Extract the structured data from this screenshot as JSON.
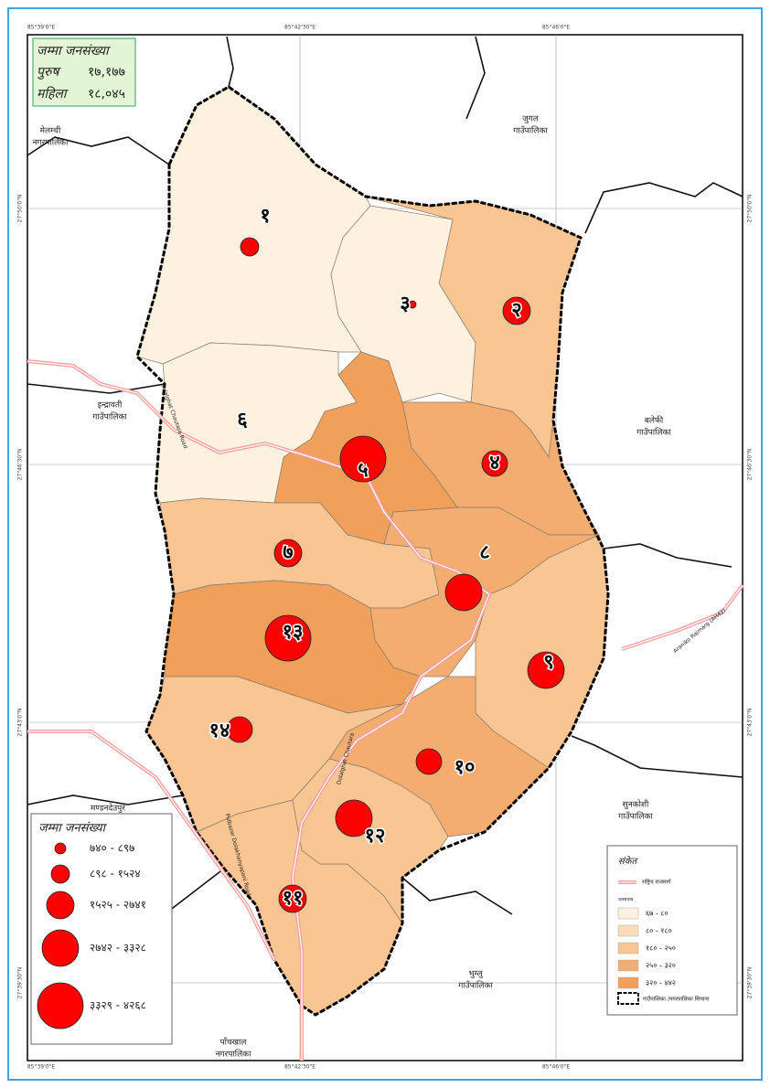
{
  "summary": {
    "title": "जम्मा जनसंख्या",
    "rows": [
      [
        "पुरुष",
        "१७,१७७"
      ],
      [
        "महिला",
        "१८,०४५"
      ]
    ]
  },
  "coordinates": {
    "top": [
      "85°39'0\"E",
      "85°42'30\"E",
      "85°46'0\"E"
    ],
    "bottom": [
      "85°39'0\"E",
      "85°42'30\"E",
      "85°46'0\"E"
    ],
    "left": [
      "27°50'0\"N",
      "27°46'30\"N",
      "27°43'0\"N",
      "27°39'30\"N"
    ],
    "right": [
      "27°50'0\"N",
      "27°46'30\"N",
      "27°43'0\"N",
      "27°39'30\"N"
    ]
  },
  "neighbors": [
    [
      "मेलम्ची",
      "नगरपालिका"
    ],
    [
      "जुगल",
      "गाउँपालिका"
    ],
    [
      "इन्द्रावती",
      "गाउँपालिका"
    ],
    [
      "बलेफी",
      "गाउँपालिका"
    ],
    [
      "सुनकोशी",
      "गाउँपालिका"
    ],
    [
      "भुम्लु",
      "गाउँपालिका"
    ],
    [
      "पाँचखाल",
      "नगरपालिका"
    ],
    [
      "मण्डनदेउपुर"
    ]
  ],
  "wards": [
    "१",
    "२",
    "३",
    "४",
    "५",
    "६",
    "७",
    "८",
    "९",
    "१०",
    "११",
    "१२",
    "१३",
    "१४"
  ],
  "roads": [
    "Araniko Rajmarg (AH42)",
    "Dolalghat Chautara",
    "Dolalghat Chautara Road",
    "Pulbazar Dolakhanyapani Road"
  ],
  "population_legend": {
    "title": "जम्मा जनसंख्या",
    "classes": [
      "७४० - ८९७",
      "८९८ - १५२४",
      "१५२५ - २७४१",
      "२७४२ - ३३२८",
      "३३२९ - ४२६८"
    ]
  },
  "map_legend": {
    "title": "संकेत",
    "road": "राष्ट्रिय राजमार्ग",
    "density_title": "जनघनत्व",
    "classes": [
      "६७ - ८०",
      "८० - १८०",
      "१८० - २५०",
      "२५० - ३२०",
      "३२० - ४४२"
    ],
    "boundary": "गाउँपालिका /नगरपालिका सिमाना"
  }
}
